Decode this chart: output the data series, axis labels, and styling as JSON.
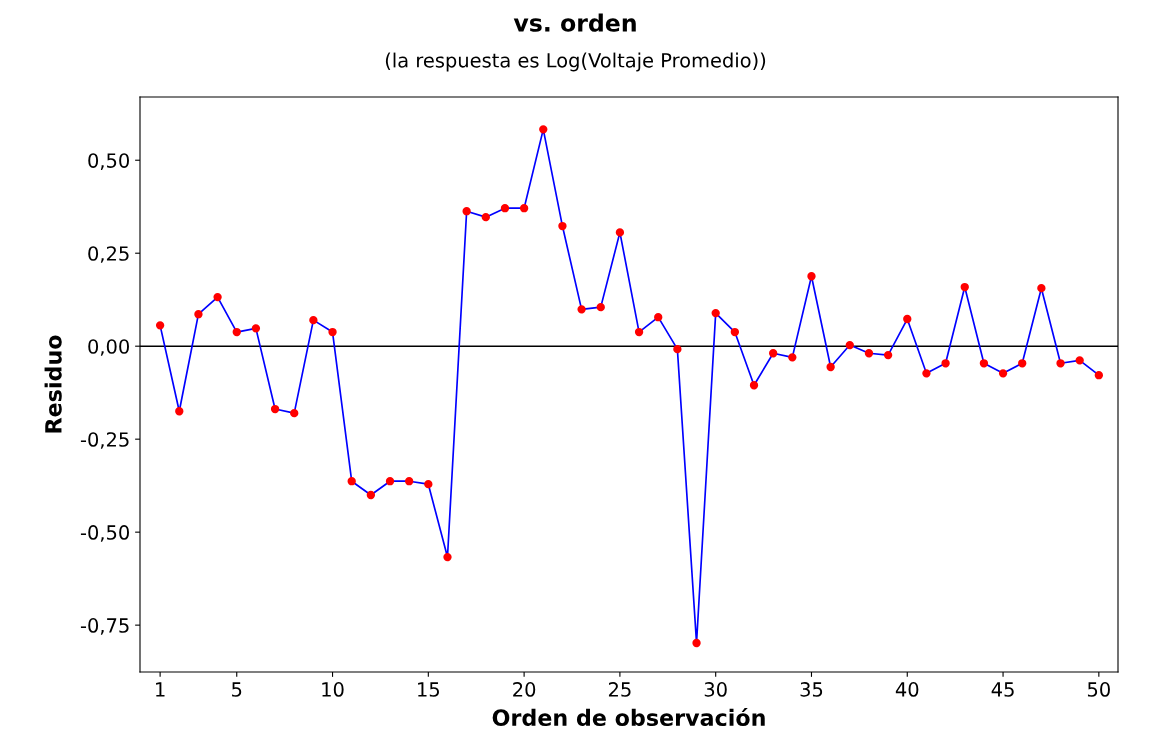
{
  "chart_data": {
    "type": "line",
    "title": "vs. orden",
    "subtitle": "(la respuesta es Log(Voltaje Promedio))",
    "xlabel": "Orden de observación",
    "ylabel": "Residuo",
    "x": [
      1,
      2,
      3,
      4,
      5,
      6,
      7,
      8,
      9,
      10,
      11,
      12,
      13,
      14,
      15,
      16,
      17,
      18,
      19,
      20,
      21,
      22,
      23,
      24,
      25,
      26,
      27,
      28,
      29,
      30,
      31,
      32,
      33,
      34,
      35,
      36,
      37,
      38,
      39,
      40,
      41,
      42,
      43,
      44,
      45,
      46,
      47,
      48,
      49,
      50
    ],
    "series": [
      {
        "color": "#0000ff",
        "colors": [
          "#ff0000",
          "#ff0000",
          "#ff0000",
          "#ff0000",
          "#ff0000",
          "#ff0000",
          "#ff0000",
          "#ff0000",
          "#ff0000",
          "#ff0000",
          "#ff0000",
          "#ff0000",
          "#ff0000",
          "#ff0000",
          "#ff0000",
          "#ff0000",
          "#ff0000",
          "#ff0000",
          "#ff0000",
          "#ff0000",
          "#ff0000",
          "#ff0000",
          "#ff0000",
          "#ff0000",
          "#ff0000",
          "#ff0000",
          "#ff0000",
          "#ff0000",
          "#ff0000",
          "#ff0000",
          "#ff0000",
          "#ff0000",
          "#ff0000",
          "#ff0000",
          "#ff0000",
          "#ff0000",
          "#ff0000",
          "#ff0000",
          "#ff0000",
          "#ff0000",
          "#ff0000",
          "#ff0000",
          "#ff0000",
          "#ff0000",
          "#ff0000",
          "#ff0000",
          "#ff0000",
          "#ff0000",
          "#ff0000",
          "#ff0000"
        ],
        "values": [
          0.056,
          -0.175,
          0.086,
          0.132,
          0.038,
          0.048,
          -0.169,
          -0.18,
          0.07,
          0.038,
          -0.363,
          -0.4,
          -0.363,
          -0.363,
          -0.371,
          -0.567,
          0.363,
          0.347,
          0.371,
          0.371,
          0.583,
          0.323,
          0.099,
          0.105,
          0.306,
          0.038,
          0.078,
          -0.008,
          -0.798,
          0.089,
          0.038,
          -0.105,
          -0.019,
          -0.03,
          0.188,
          -0.056,
          0.003,
          -0.019,
          -0.024,
          0.073,
          -0.073,
          -0.046,
          0.159,
          -0.046,
          -0.073,
          -0.046,
          0.156,
          -0.046,
          -0.038,
          -0.078
        ]
      }
    ],
    "marker": "circle",
    "line_style": "solid",
    "grid": false,
    "legend": false,
    "xlim": [
      -0.05,
      51
    ],
    "xticks": [
      1,
      5,
      10,
      15,
      20,
      25,
      30,
      35,
      40,
      45,
      50
    ],
    "ylim": [
      -0.876,
      0.67
    ],
    "yticks": [
      {
        "value": -0.75,
        "label": "-0,75"
      },
      {
        "value": -0.5,
        "label": "-0,50"
      },
      {
        "value": -0.25,
        "label": "-0,25"
      },
      {
        "value": 0,
        "label": "0,00"
      },
      {
        "value": 0.25,
        "label": "0,25"
      },
      {
        "value": 0.5,
        "label": "0,50"
      }
    ],
    "ref_lines": [
      {
        "axis": "y",
        "value": 0,
        "color": "#000000"
      }
    ]
  }
}
